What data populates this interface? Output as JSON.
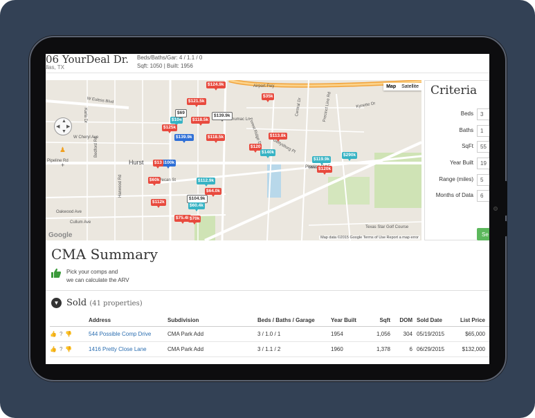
{
  "header": {
    "address": "06 YourDeal Dr.",
    "city": "allas, TX",
    "beds_baths": "Beds/Baths/Gar: 4 / 1.1 / 0",
    "sqft_built": "Sqft: 1050 | Built: 1956"
  },
  "map": {
    "toggle_map": "Map",
    "toggle_satellite": "Satellite",
    "footer": "Map data ©2015 Google   Terms of Use   Report a map error",
    "google": "Google",
    "roads": [
      "Airport Fwy",
      "W Euless Blvd",
      "Pipeline Rd",
      "Pipeline Rd E",
      "E Pecan St",
      "Schumac Ln",
      "Kynette Dr",
      "Forest Ridge Dr",
      "Central Dr",
      "Precinct Line Rd",
      "Hurst",
      "Bedford Rd",
      "Harwood Rd",
      "Needles St",
      "Texas Star Golf Course",
      "Oakwood Ave",
      "Cullum Ave",
      "Gettysburg Pl",
      "W Cheryl Ave",
      "Karla Dr"
    ],
    "pins": [
      {
        "label": "$124.9k",
        "color": "red"
      },
      {
        "label": "$121.5k",
        "color": "red"
      },
      {
        "label": "$35k",
        "color": "red"
      },
      {
        "label": "$139.9k",
        "color": "white"
      },
      {
        "label": "$118.5k",
        "color": "red"
      },
      {
        "label": "$104",
        "color": "teal"
      },
      {
        "label": "$125k",
        "color": "red"
      },
      {
        "label": "$139.9k",
        "color": "blue"
      },
      {
        "label": "$118.5k",
        "color": "red"
      },
      {
        "label": "$113.8k",
        "color": "red"
      },
      {
        "label": "$120",
        "color": "red"
      },
      {
        "label": "$140k",
        "color": "teal"
      },
      {
        "label": "$119.9k",
        "color": "teal"
      },
      {
        "label": "$290k",
        "color": "teal"
      },
      {
        "label": "$120k",
        "color": "red"
      },
      {
        "label": "$100k",
        "color": "blue"
      },
      {
        "label": "$13",
        "color": "red"
      },
      {
        "label": "$60k",
        "color": "red"
      },
      {
        "label": "$112.9k",
        "color": "teal"
      },
      {
        "label": "$64.0k",
        "color": "red"
      },
      {
        "label": "$104.9k",
        "color": "white"
      },
      {
        "label": "$112k",
        "color": "red"
      },
      {
        "label": "$60.4k",
        "color": "teal"
      },
      {
        "label": "$75.4k",
        "color": "red"
      },
      {
        "label": "$70k",
        "color": "red"
      },
      {
        "label": "$69",
        "color": "white"
      }
    ]
  },
  "criteria": {
    "title": "Criteria",
    "fields": [
      {
        "label": "Beds",
        "value": "3"
      },
      {
        "label": "Baths",
        "value": "1"
      },
      {
        "label": "SqFt",
        "value": "55"
      },
      {
        "label": "Year Built",
        "value": "19"
      },
      {
        "label": "Range (miles)",
        "value": "5"
      },
      {
        "label": "Months of Data",
        "value": "6"
      }
    ],
    "submit": "Se"
  },
  "cma": {
    "title": "CMA Summary",
    "hint_line1": "Pick your comps and",
    "hint_line2": "we can calculate the ARV"
  },
  "sold": {
    "title": "Sold",
    "count": "(41 properties)",
    "columns": [
      "",
      "Address",
      "Subdivision",
      "Beds / Baths / Garage",
      "Year Built",
      "Sqft",
      "DOM",
      "Sold Date",
      "List Price"
    ],
    "rows": [
      {
        "address": "544 Possible Comp Drive",
        "subdivision": "CMA Park Add",
        "bbg": "3 / 1.0 / 1",
        "year": "1954",
        "sqft": "1,056",
        "dom": "304",
        "sold_date": "05/19/2015",
        "list_price": "$65,000"
      },
      {
        "address": "1416 Pretty Close Lane",
        "subdivision": "CMA Park Add",
        "bbg": "3 / 1.1 / 2",
        "year": "1960",
        "sqft": "1,378",
        "dom": "6",
        "sold_date": "06/29/2015",
        "list_price": "$132,000"
      }
    ]
  },
  "colors": {
    "pin_red": "#e84a3e",
    "pin_teal": "#37b3c4",
    "pin_blue": "#2e6fd6",
    "button_green": "#5cb85c",
    "link_blue": "#2a6db0",
    "bezel": "#334155"
  }
}
